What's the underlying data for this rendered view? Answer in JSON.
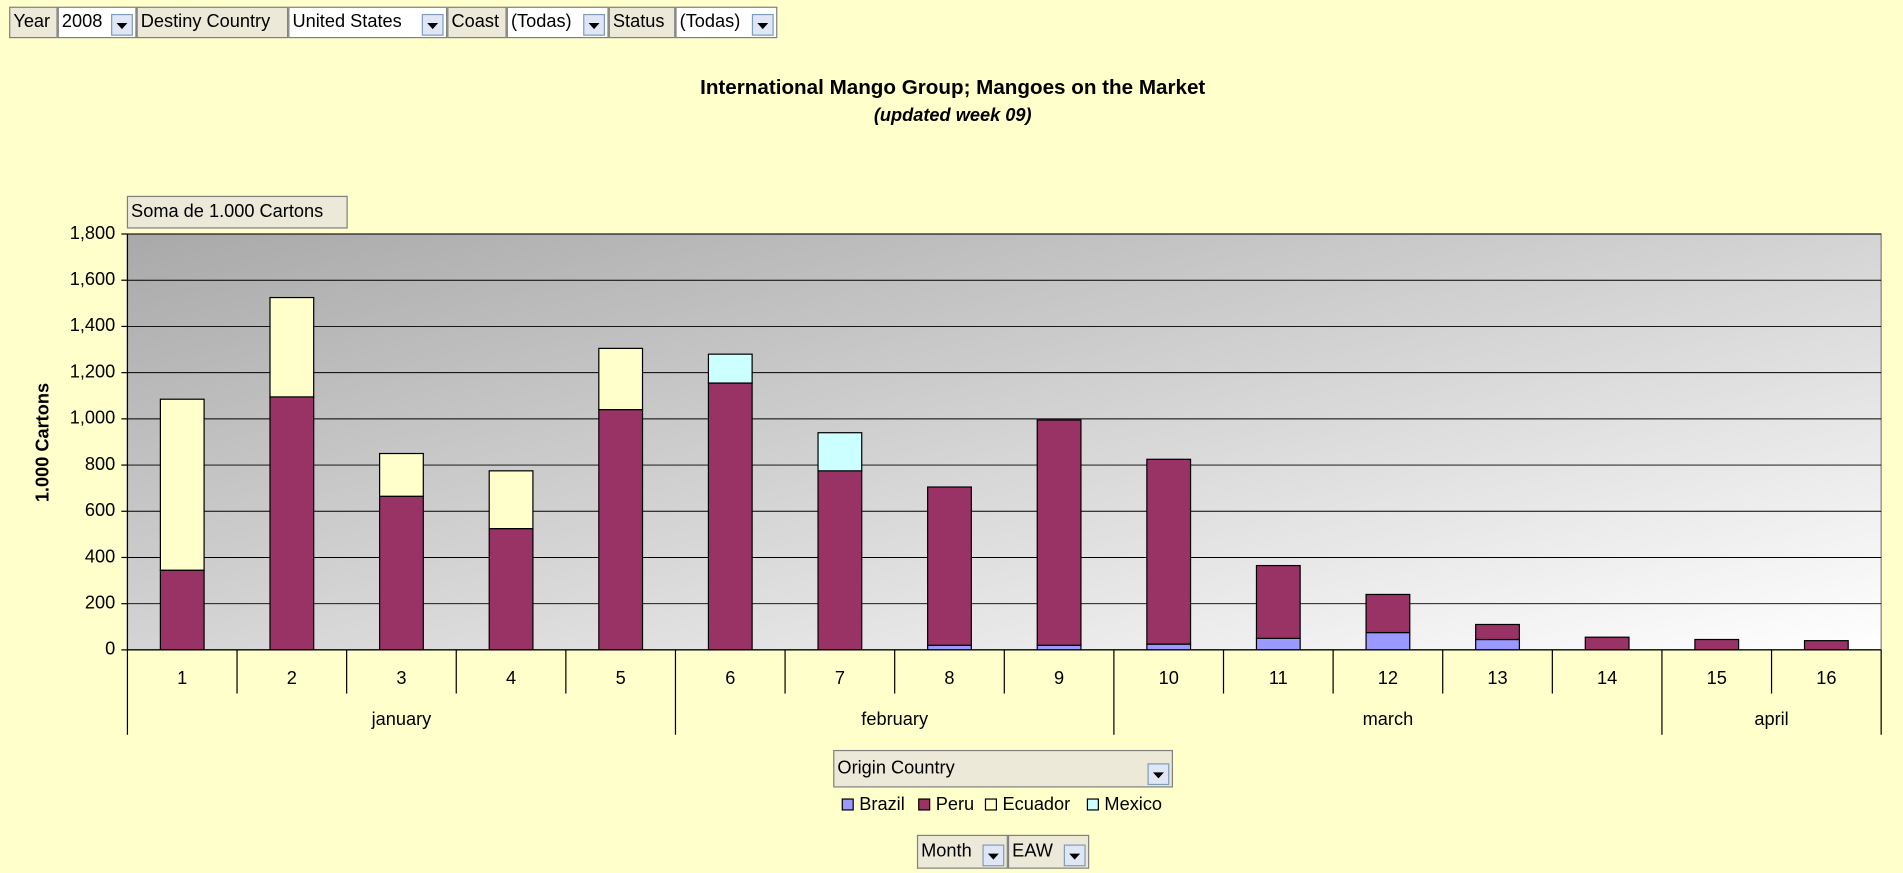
{
  "filters": [
    {
      "field": "Year",
      "value": "2008"
    },
    {
      "field": "Destiny Country",
      "value": "United States"
    },
    {
      "field": "Coast",
      "value": "(Todas)"
    },
    {
      "field": "Status",
      "value": "(Todas)"
    }
  ],
  "data_field": "Soma de 1.000 Cartons",
  "legend_field": "Origin Country",
  "row_fields": [
    "Month",
    "EAW"
  ],
  "chart_data": {
    "type": "stacked_bar",
    "title": "International Mango Group; Mangoes on the Market",
    "subtitle": "(updated week 09)",
    "y_label": "1.000 Cartons",
    "categories": [
      "1",
      "2",
      "3",
      "4",
      "5",
      "6",
      "7",
      "8",
      "9",
      "10",
      "11",
      "12",
      "13",
      "14",
      "15",
      "16"
    ],
    "month_labels": [
      "january",
      null,
      null,
      null,
      null,
      "february",
      null,
      null,
      null,
      "march",
      null,
      null,
      null,
      null,
      "april",
      null
    ],
    "series": [
      {
        "name": "Brazil",
        "color": "#9999ff",
        "values": [
          0,
          0,
          0,
          0,
          0,
          0,
          0,
          20,
          20,
          25,
          50,
          75,
          45,
          0,
          0,
          0
        ]
      },
      {
        "name": "Peru",
        "color": "#993366",
        "values": [
          345,
          1095,
          665,
          525,
          1040,
          1155,
          775,
          685,
          975,
          800,
          315,
          165,
          65,
          55,
          45,
          40
        ]
      },
      {
        "name": "Ecuador",
        "color": "#ffffcc",
        "values": [
          740,
          430,
          185,
          250,
          265,
          0,
          0,
          0,
          0,
          0,
          0,
          0,
          0,
          0,
          0,
          0
        ]
      },
      {
        "name": "Mexico",
        "color": "#ccffff",
        "values": [
          0,
          0,
          0,
          0,
          0,
          125,
          165,
          0,
          0,
          0,
          0,
          0,
          0,
          0,
          0,
          0
        ]
      }
    ],
    "ylim": [
      0,
      1800
    ],
    "yticks": [
      0,
      200,
      400,
      600,
      800,
      {
        "value": 1000,
        "label": "1,000"
      },
      {
        "value": 1200,
        "label": "1,200"
      },
      {
        "value": 1400,
        "label": "1,400"
      },
      {
        "value": 1600,
        "label": "1,600"
      },
      {
        "value": 1800,
        "label": "1,800"
      }
    ],
    "grid": true,
    "legend": "bottom"
  }
}
